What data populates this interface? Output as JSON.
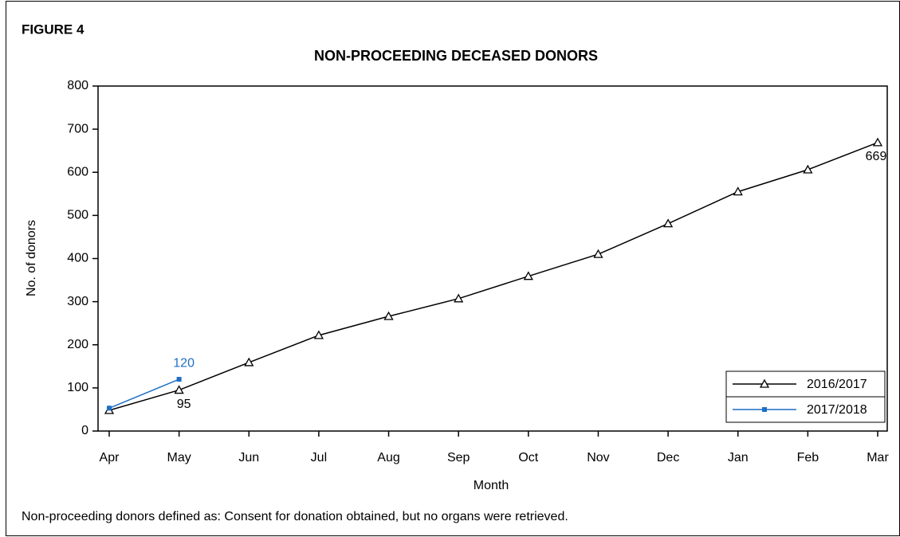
{
  "chart_data": {
    "type": "line",
    "figure_label": "FIGURE 4",
    "title": "NON-PROCEEDING DECEASED DONORS",
    "x_label": "Month",
    "y_label": "No. of donors",
    "footnote": "Non-proceeding donors defined as: Consent for donation obtained, but no organs were retrieved.",
    "categories": [
      "Apr",
      "May",
      "Jun",
      "Jul",
      "Aug",
      "Sep",
      "Oct",
      "Nov",
      "Dec",
      "Jan",
      "Feb",
      "Mar"
    ],
    "series": [
      {
        "name": "2016/2017",
        "color": "#000000",
        "marker": "triangle",
        "values": [
          48,
          95,
          159,
          222,
          266,
          307,
          359,
          410,
          481,
          555,
          606,
          669
        ],
        "value_labels": [
          null,
          "95",
          null,
          null,
          null,
          null,
          null,
          null,
          null,
          null,
          null,
          "669"
        ]
      },
      {
        "name": "2017/2018",
        "color": "#1f6fc4",
        "marker": "square",
        "values": [
          53,
          120,
          null,
          null,
          null,
          null,
          null,
          null,
          null,
          null,
          null,
          null
        ],
        "value_labels": [
          null,
          "120",
          null,
          null,
          null,
          null,
          null,
          null,
          null,
          null,
          null,
          null
        ]
      }
    ],
    "ylim": [
      0,
      800
    ],
    "yticks": [
      0,
      100,
      200,
      300,
      400,
      500,
      600,
      700,
      800
    ],
    "grid": false,
    "legend": "lower right"
  }
}
